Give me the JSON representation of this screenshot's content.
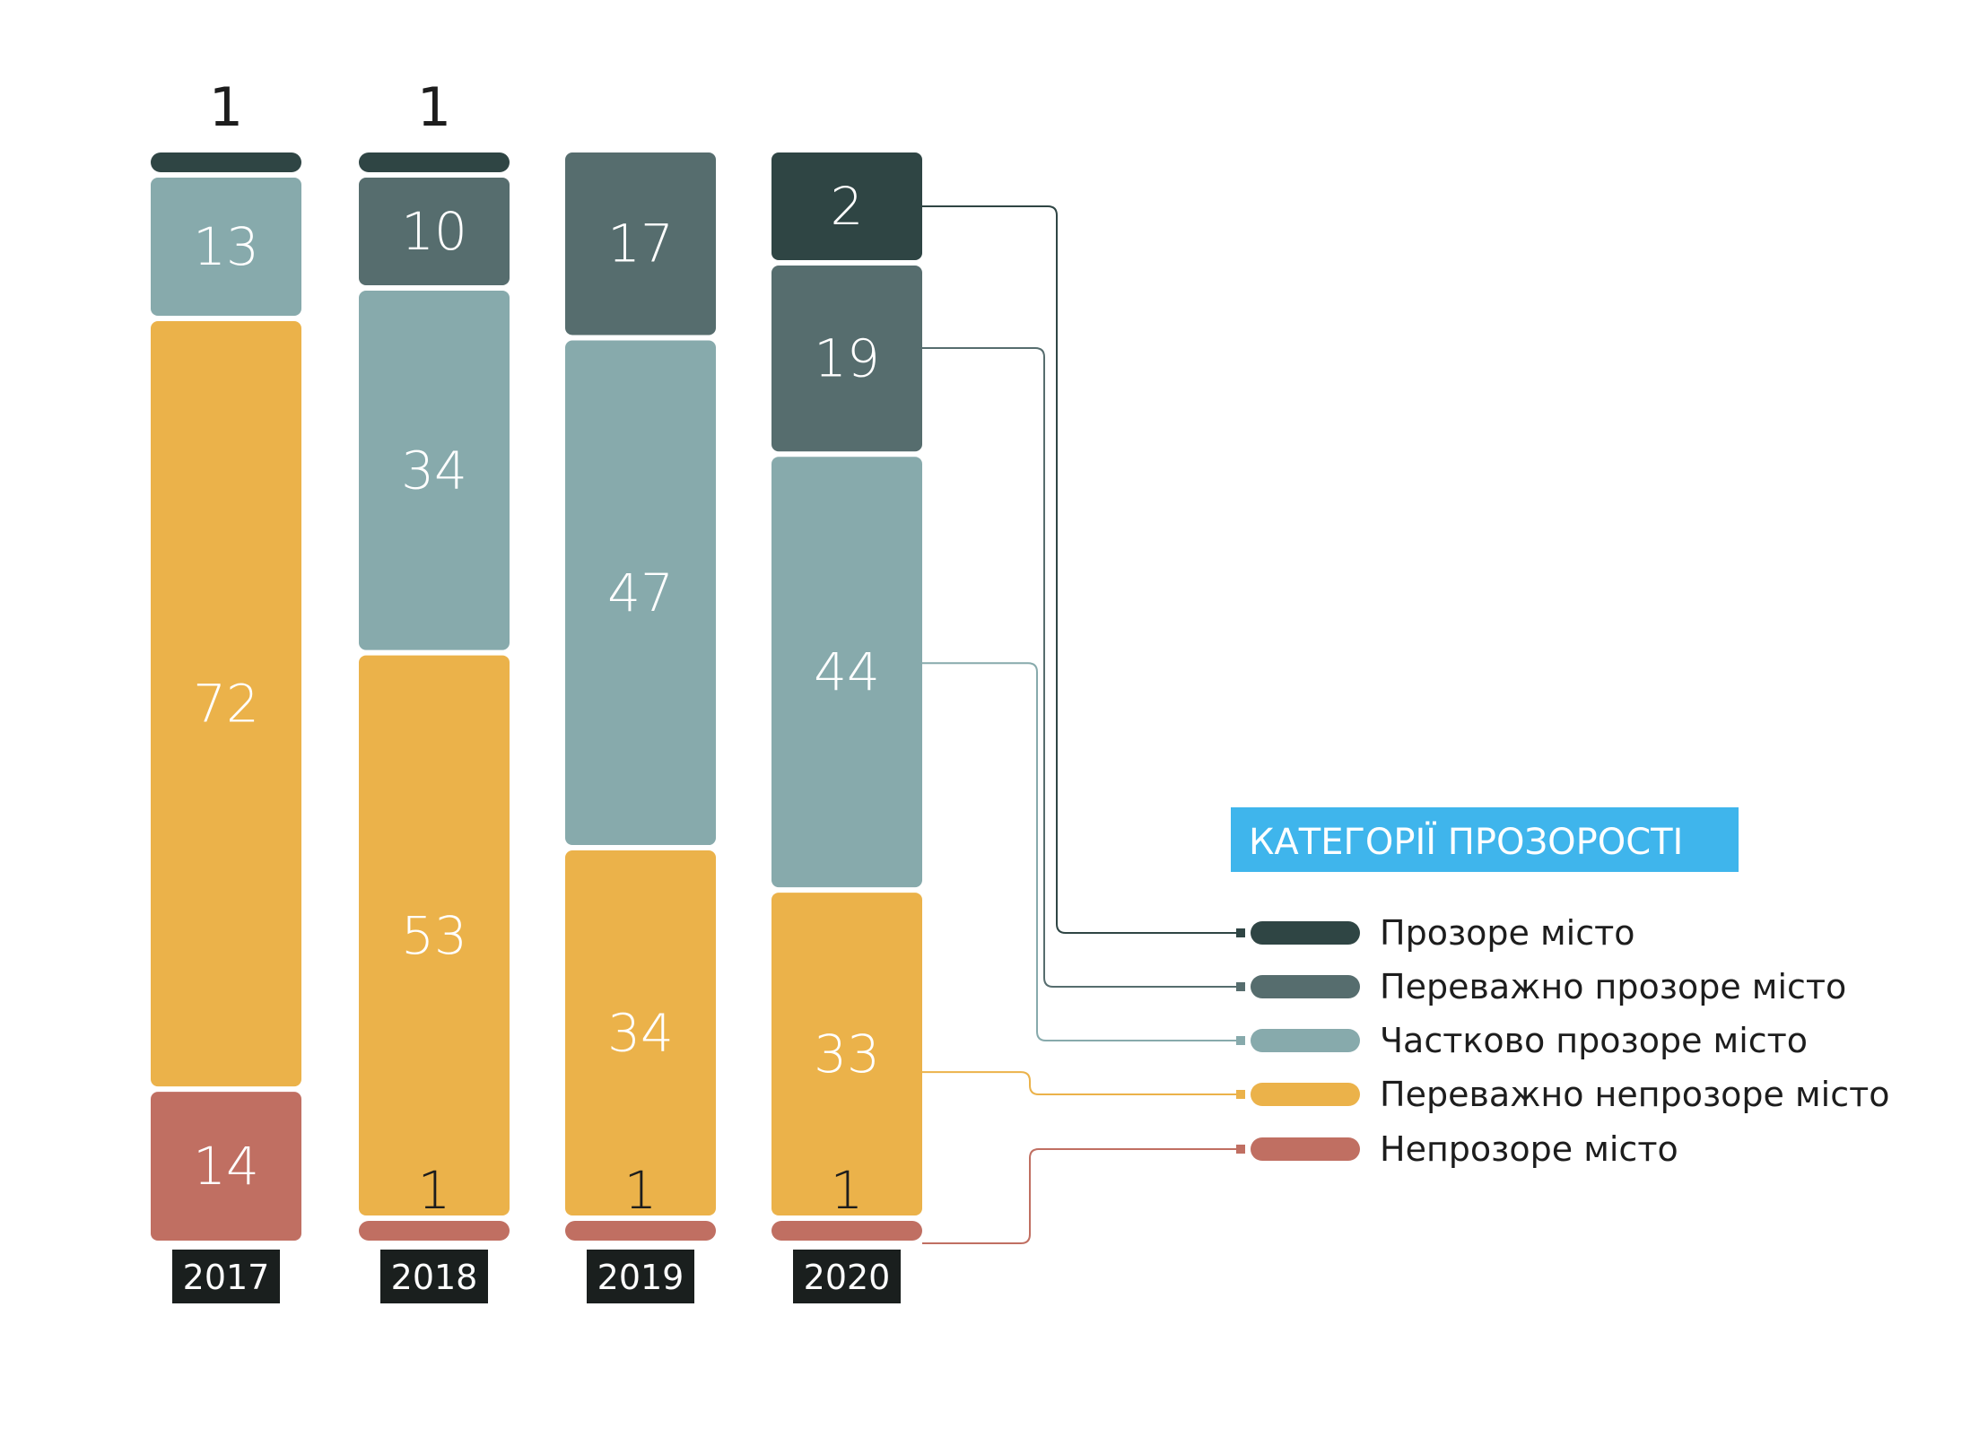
{
  "chart_data": {
    "type": "bar",
    "stacked": true,
    "categories": [
      "2017",
      "2018",
      "2019",
      "2020"
    ],
    "series": [
      {
        "name": "Прозоре місто",
        "color": "#2f4544",
        "values": [
          1,
          1,
          0,
          2
        ]
      },
      {
        "name": "Переважно прозоре місто",
        "color": "#566d6e",
        "values": [
          0,
          10,
          17,
          19
        ]
      },
      {
        "name": "Частково прозоре місто",
        "color": "#87aaac",
        "values": [
          13,
          34,
          47,
          44
        ]
      },
      {
        "name": "Переважно непрозоре місто",
        "color": "#ebb24a",
        "values": [
          72,
          53,
          34,
          33
        ]
      },
      {
        "name": "Непрозоре місто",
        "color": "#c06f62",
        "values": [
          14,
          1,
          1,
          1
        ]
      }
    ],
    "legend_title": "КАТЕГОРІЇ ПРОЗОРОСТІ",
    "legend_position": "right",
    "title": "",
    "xlabel": "",
    "ylabel": "",
    "grid": false
  },
  "colors": {
    "year_badge": "#1a1f1e",
    "legend_title_bg": "#3fb5ec",
    "label_dark": "#1d1d1d"
  }
}
